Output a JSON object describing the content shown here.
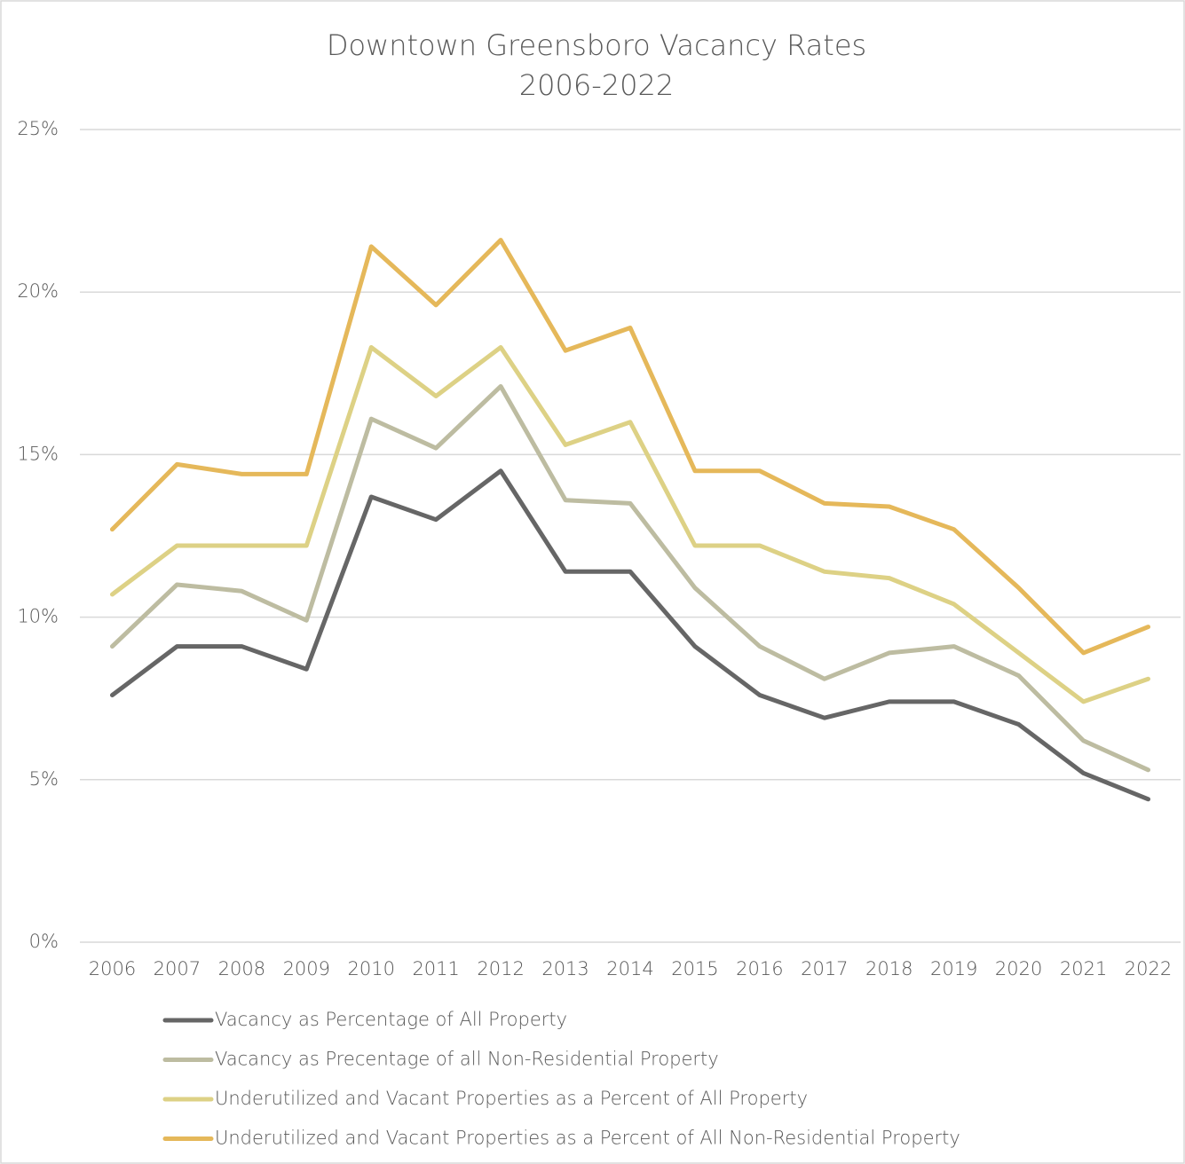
{
  "chart_data": {
    "type": "line",
    "title": [
      "Downtown Greensboro Vacancy Rates",
      "2006-2022"
    ],
    "categories": [
      "2006",
      "2007",
      "2008",
      "2009",
      "2010",
      "2011",
      "2012",
      "2013",
      "2014",
      "2015",
      "2016",
      "2017",
      "2018",
      "2019",
      "2020",
      "2021",
      "2022"
    ],
    "series": [
      {
        "name": "Vacancy as Percentage of All Property",
        "color": "#666666",
        "values": [
          7.6,
          9.1,
          9.1,
          8.4,
          13.7,
          13.0,
          14.5,
          11.4,
          11.4,
          9.1,
          7.6,
          6.9,
          7.4,
          7.4,
          6.7,
          5.2,
          4.4
        ]
      },
      {
        "name": "Vacancy as Precentage of all Non-Residential Property",
        "color": "#bdbca1",
        "values": [
          9.1,
          11.0,
          10.8,
          9.9,
          16.1,
          15.2,
          17.1,
          13.6,
          13.5,
          10.9,
          9.1,
          8.1,
          8.9,
          9.1,
          8.2,
          6.2,
          5.3
        ]
      },
      {
        "name": "Underutilized and Vacant Properties as a Percent of All Property",
        "color": "#ddd185",
        "values": [
          10.7,
          12.2,
          12.2,
          12.2,
          18.3,
          16.8,
          18.3,
          15.3,
          16.0,
          12.2,
          12.2,
          11.4,
          11.2,
          10.4,
          8.9,
          7.4,
          8.1
        ]
      },
      {
        "name": "Underutilized and Vacant Properties as a Percent of All Non-Residential Property",
        "color": "#e5b85a",
        "values": [
          12.7,
          14.7,
          14.4,
          14.4,
          21.4,
          19.6,
          21.6,
          18.2,
          18.9,
          14.5,
          14.5,
          13.5,
          13.4,
          12.7,
          10.9,
          8.9,
          9.7
        ]
      }
    ],
    "ylim": [
      0,
      25
    ],
    "yticks": [
      {
        "value": 0,
        "label": "0%"
      },
      {
        "value": 5,
        "label": "5%"
      },
      {
        "value": 10,
        "label": "10%"
      },
      {
        "value": 15,
        "label": "15%"
      },
      {
        "value": 20,
        "label": "20%"
      },
      {
        "value": 25,
        "label": "25%"
      }
    ],
    "grid": true
  }
}
